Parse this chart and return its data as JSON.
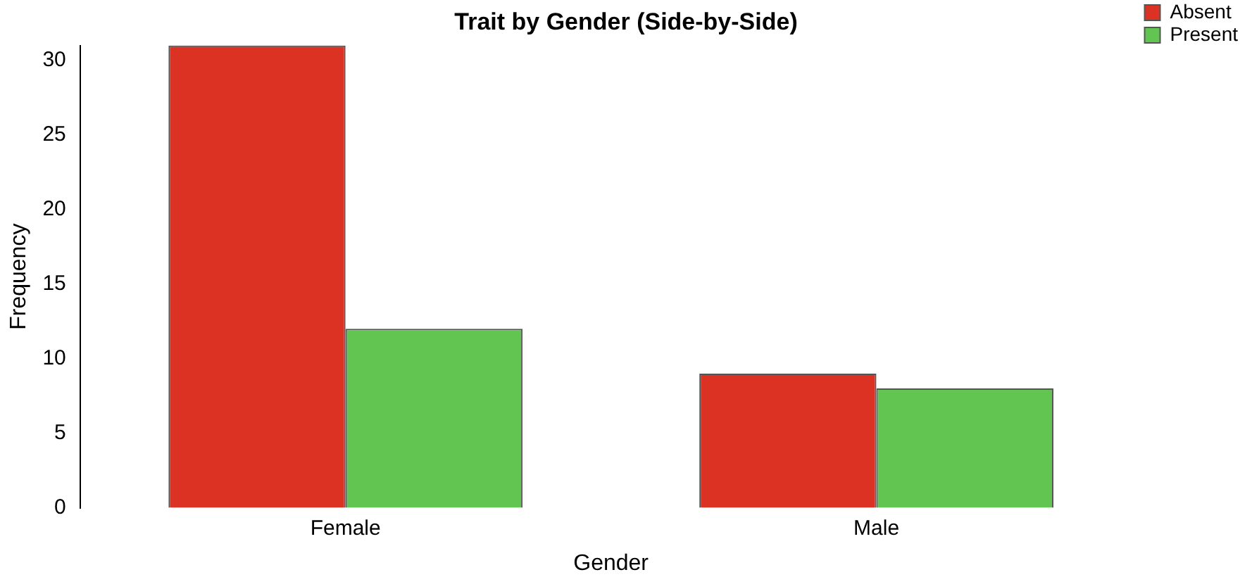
{
  "chart_data": {
    "type": "bar",
    "title": "Trait by Gender (Side-by-Side)",
    "xlabel": "Gender",
    "ylabel": "Frequency",
    "categories": [
      "Female",
      "Male"
    ],
    "series": [
      {
        "name": "Absent",
        "color": "#dc3224",
        "values": [
          31,
          9
        ]
      },
      {
        "name": "Present",
        "color": "#62c552",
        "values": [
          12,
          8
        ]
      }
    ],
    "ylim": [
      0,
      31
    ],
    "yticks": [
      0,
      5,
      10,
      15,
      20,
      25,
      30
    ],
    "grid": false,
    "legend": "top right"
  }
}
